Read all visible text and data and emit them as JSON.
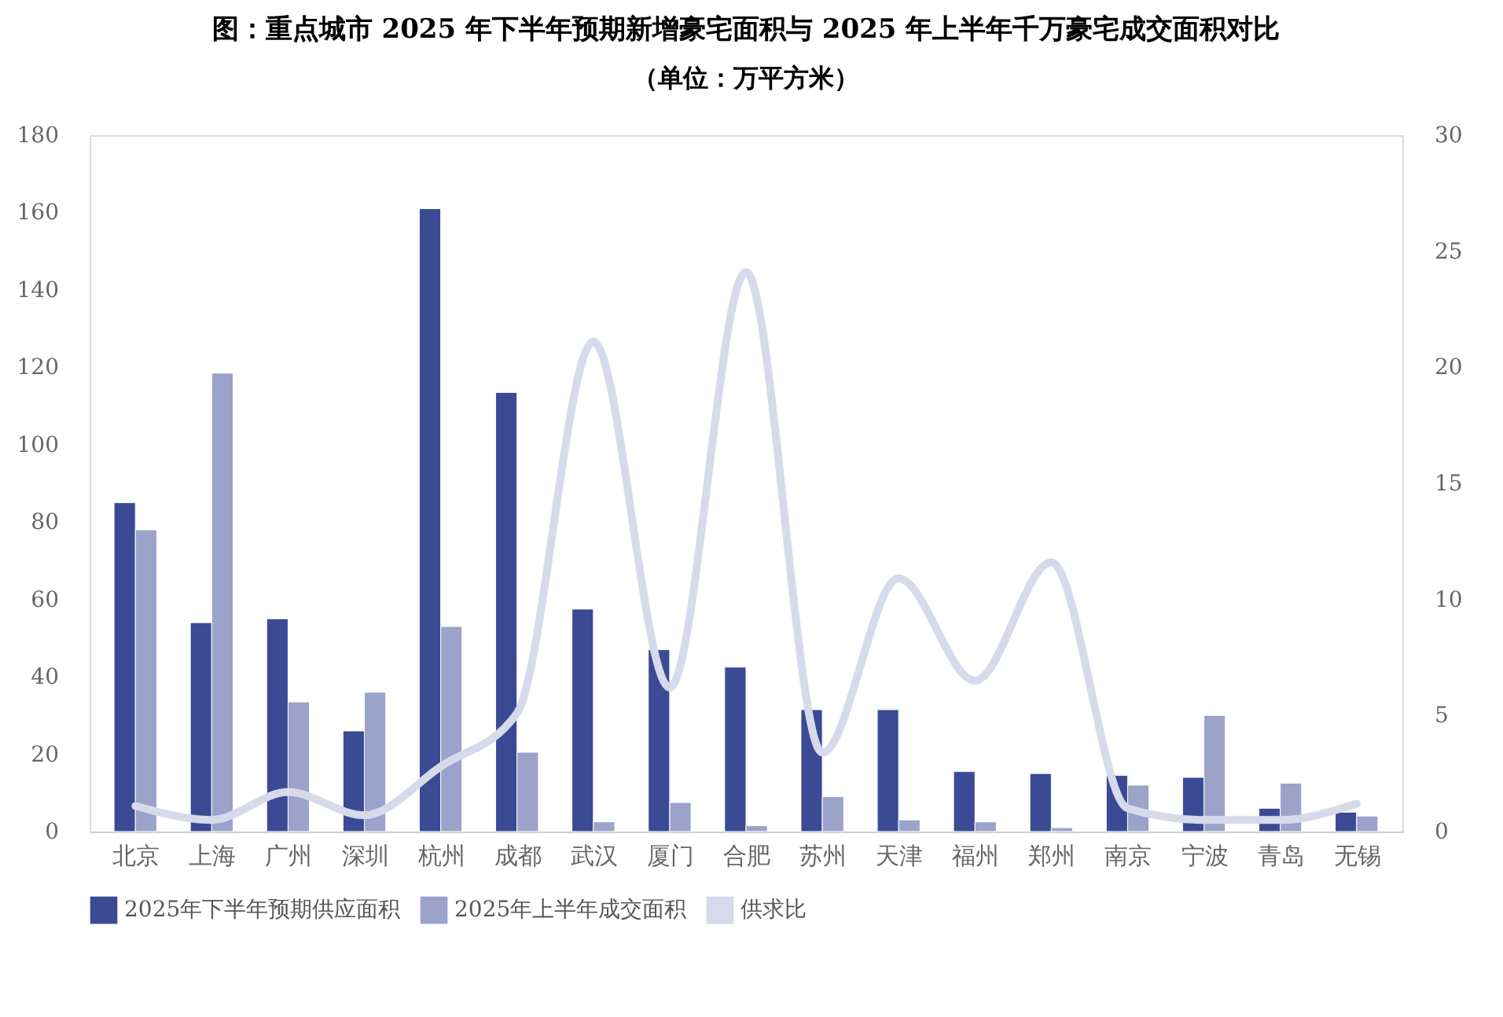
{
  "chart_data": {
    "type": "bar",
    "title": "图：重点城市 2025 年下半年预期新增豪宅面积与 2025 年上半年千万豪宅成交面积对比",
    "subtitle": "（单位：万平方米）",
    "categories": [
      "北京",
      "上海",
      "广州",
      "深圳",
      "杭州",
      "成都",
      "武汉",
      "厦门",
      "合肥",
      "苏州",
      "天津",
      "福州",
      "郑州",
      "南京",
      "宁波",
      "青岛",
      "无锡"
    ],
    "series": [
      {
        "name": "2025年下半年预期供应面积",
        "color": "#3b4a94",
        "values": [
          85,
          54,
          55,
          26,
          161,
          113.5,
          57.5,
          47,
          42.5,
          31.5,
          31.5,
          15.5,
          15,
          14.5,
          14,
          6,
          5
        ]
      },
      {
        "name": "2025年上半年成交面积",
        "color": "#9ba3cb",
        "values": [
          78,
          118.5,
          33.5,
          36,
          53,
          20.5,
          2.5,
          7.5,
          1.5,
          9,
          3,
          2.5,
          1,
          12,
          30,
          12.5,
          4
        ]
      },
      {
        "name": "供求比",
        "type": "line",
        "axis": "y2",
        "color": "#d6daeb",
        "values": [
          1.1,
          0.5,
          1.7,
          0.7,
          2.8,
          5.1,
          21.1,
          6.2,
          24.1,
          3.4,
          10.9,
          6.5,
          11.6,
          1.0,
          0.5,
          0.5,
          1.2
        ]
      }
    ],
    "ylim": [
      0,
      180
    ],
    "yticks": [
      0,
      20,
      40,
      60,
      80,
      100,
      120,
      140,
      160,
      180
    ],
    "y2lim": [
      0,
      30
    ],
    "y2ticks": [
      0,
      5,
      10,
      15,
      20,
      25,
      30
    ],
    "grid": false,
    "legend": "bottom"
  }
}
